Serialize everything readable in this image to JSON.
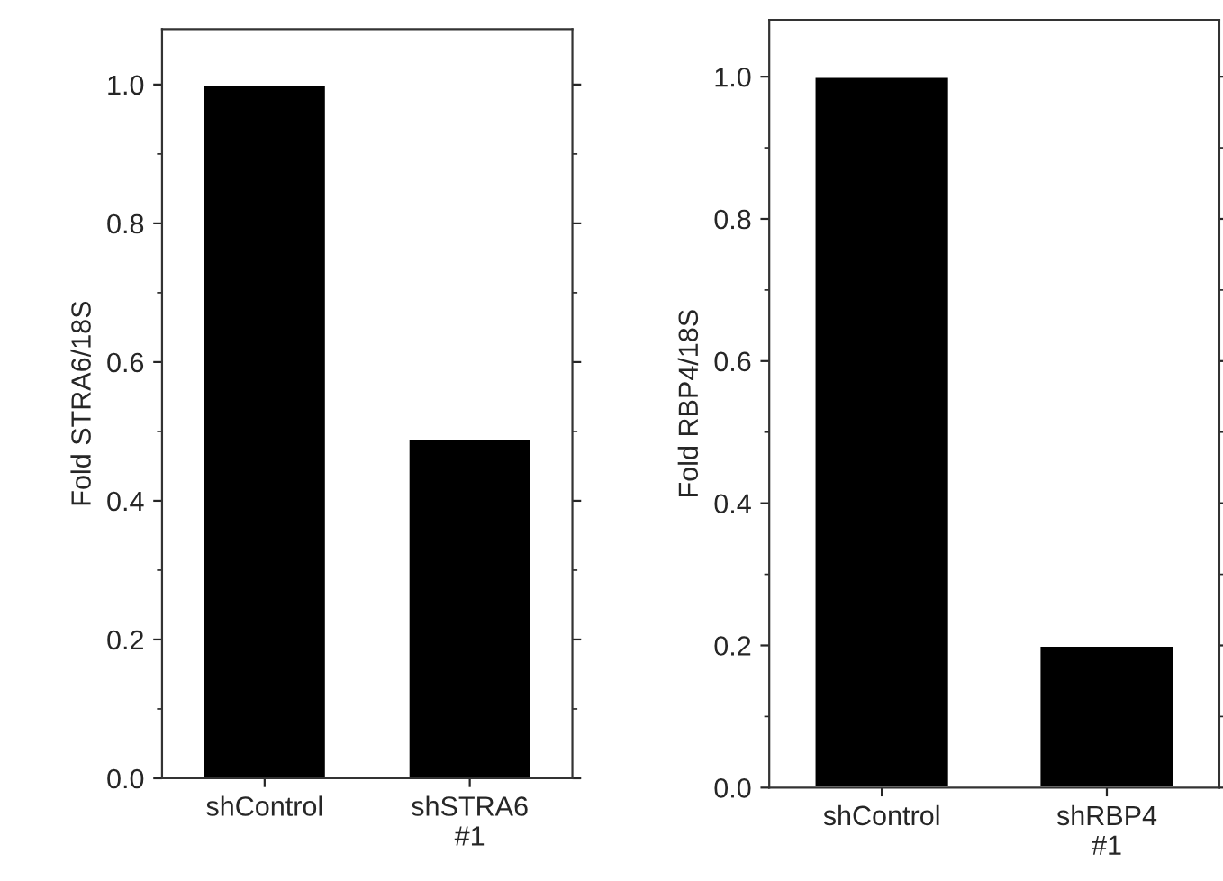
{
  "chart_data": [
    {
      "type": "bar",
      "categories": [
        "shControl",
        "shSTRA6\n#1"
      ],
      "values": [
        1.0,
        0.49
      ],
      "color": "#000000",
      "ylabel": "Fold STRA6/18S",
      "ylim": [
        0,
        1.08
      ],
      "yticks": [
        {
          "value": 0,
          "label": "0.0"
        },
        {
          "value": 0.1,
          "label": null
        },
        {
          "value": 0.2,
          "label": "0.2"
        },
        {
          "value": 0.3,
          "label": null
        },
        {
          "value": 0.4,
          "label": "0.4"
        },
        {
          "value": 0.5,
          "label": null
        },
        {
          "value": 0.6,
          "label": "0.6"
        },
        {
          "value": 0.7,
          "label": null
        },
        {
          "value": 0.8,
          "label": "0.8"
        },
        {
          "value": 0.9,
          "label": null
        },
        {
          "value": 1,
          "label": "1.0"
        }
      ],
      "grid": false,
      "legend": false
    },
    {
      "type": "bar",
      "categories": [
        "shControl",
        "shRBP4\n#1"
      ],
      "values": [
        1.0,
        0.2
      ],
      "color": "#000000",
      "ylabel": "Fold RBP4/18S",
      "ylim": [
        0,
        1.08
      ],
      "yticks": [
        {
          "value": 0,
          "label": "0.0"
        },
        {
          "value": 0.1,
          "label": null
        },
        {
          "value": 0.2,
          "label": "0.2"
        },
        {
          "value": 0.3,
          "label": null
        },
        {
          "value": 0.4,
          "label": "0.4"
        },
        {
          "value": 0.5,
          "label": null
        },
        {
          "value": 0.6,
          "label": "0.6"
        },
        {
          "value": 0.7,
          "label": null
        },
        {
          "value": 0.8,
          "label": "0.8"
        },
        {
          "value": 0.9,
          "label": null
        },
        {
          "value": 1,
          "label": "1.0"
        }
      ],
      "grid": false,
      "legend": false
    }
  ]
}
